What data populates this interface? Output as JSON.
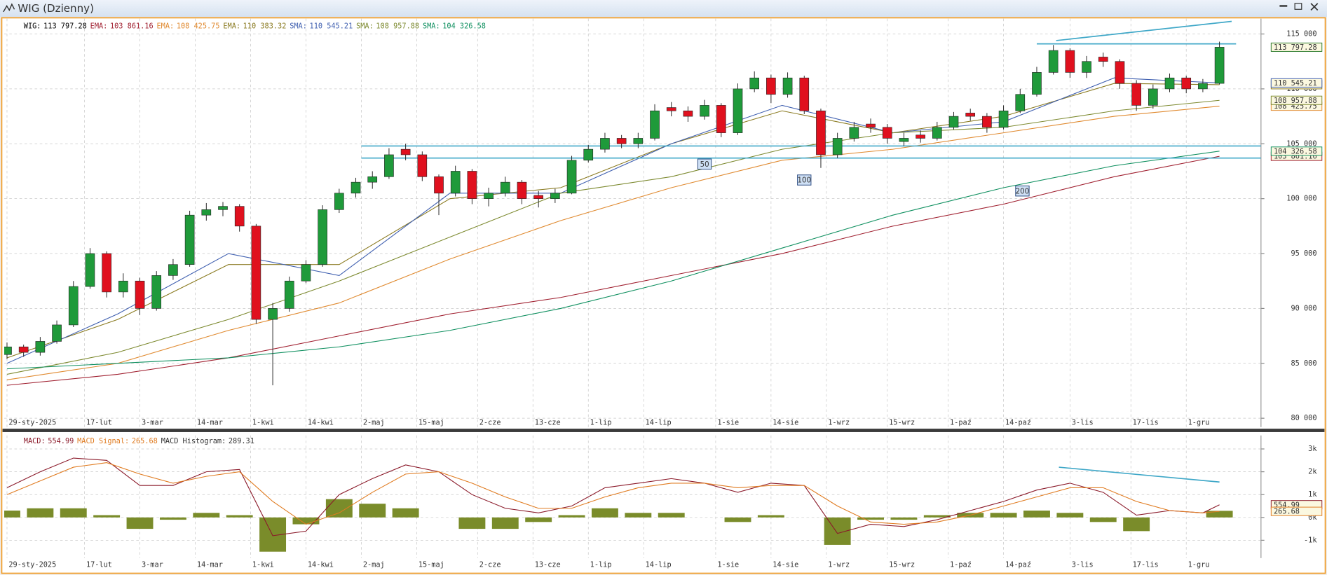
{
  "window": {
    "title": "WIG (Dzienny)"
  },
  "chart_data": [
    {
      "type": "candlestick",
      "name": "WIG:",
      "last_label": "113 797.28",
      "color": "#000000",
      "up_color": "#1f9a3a",
      "down_color": "#e0101e",
      "x": [
        0,
        3,
        6,
        9,
        12,
        15,
        18,
        21,
        24,
        27,
        30,
        33,
        36,
        39,
        42,
        45,
        48,
        51,
        54,
        57,
        60,
        63,
        66,
        69,
        72,
        75,
        78,
        81,
        84,
        87,
        90,
        93,
        96,
        99,
        102,
        105,
        108,
        111,
        114,
        117,
        120,
        123,
        126,
        129,
        132,
        135,
        138,
        141,
        144,
        147,
        150,
        153,
        156,
        159,
        162,
        165,
        168,
        171,
        174,
        177,
        180,
        183,
        186,
        189,
        192,
        195,
        198,
        201,
        204,
        207,
        210,
        213,
        216,
        219
      ],
      "open": [
        85800,
        86500,
        86000,
        87000,
        88500,
        92000,
        95000,
        91500,
        92500,
        90000,
        93000,
        94000,
        98500,
        99000,
        99300,
        97500,
        89000,
        90000,
        92500,
        94000,
        99000,
        100500,
        101500,
        102000,
        104500,
        104000,
        102000,
        100500,
        102500,
        100000,
        100500,
        101500,
        100300,
        100000,
        100500,
        103500,
        104500,
        105500,
        105000,
        105500,
        108300,
        108000,
        107500,
        108500,
        106000,
        110000,
        111000,
        109500,
        111000,
        108000,
        104000,
        105500,
        106800,
        106500,
        105200,
        105800,
        105500,
        106500,
        107800,
        107500,
        106500,
        108000,
        109500,
        111500,
        113500,
        111500,
        112900,
        112500,
        110500,
        108500,
        110000,
        111000,
        110000,
        110500
      ],
      "high": [
        86900,
        86700,
        87400,
        88900,
        92500,
        95500,
        95200,
        93200,
        92800,
        93400,
        94500,
        98900,
        99600,
        99700,
        99500,
        97700,
        90500,
        92900,
        94400,
        99400,
        100900,
        101900,
        102500,
        104600,
        105000,
        104300,
        102200,
        103000,
        102700,
        101000,
        102000,
        101700,
        100700,
        100900,
        103900,
        104900,
        106000,
        105800,
        106000,
        108600,
        108800,
        108400,
        109000,
        108700,
        110500,
        111600,
        111300,
        111500,
        111200,
        108200,
        106000,
        107000,
        107300,
        106800,
        106000,
        106200,
        107000,
        107900,
        108200,
        107800,
        108500,
        110000,
        112000,
        114000,
        113700,
        113000,
        113300,
        112700,
        110800,
        110400,
        111400,
        111200,
        110900,
        114300
      ],
      "low": [
        85400,
        85600,
        85700,
        86800,
        88300,
        91800,
        91000,
        91000,
        89400,
        89800,
        92600,
        93800,
        98000,
        98400,
        97000,
        88600,
        83000,
        89700,
        92300,
        93800,
        98700,
        100100,
        100900,
        101800,
        103500,
        101600,
        98500,
        100200,
        99500,
        99300,
        100200,
        99500,
        99200,
        99600,
        100400,
        103300,
        104200,
        104600,
        104600,
        105300,
        107500,
        107000,
        107200,
        105600,
        105800,
        109700,
        108700,
        109200,
        107700,
        102800,
        103700,
        105200,
        106000,
        105000,
        104800,
        105100,
        105300,
        106300,
        107100,
        106000,
        106300,
        107800,
        109300,
        111300,
        111000,
        111000,
        112000,
        110000,
        108000,
        108200,
        109700,
        109600,
        109700,
        110400
      ],
      "close": [
        86500,
        86000,
        87000,
        88500,
        92000,
        95000,
        91500,
        92500,
        90000,
        93000,
        94000,
        98500,
        99000,
        99300,
        97500,
        89000,
        90000,
        92500,
        94000,
        99000,
        100500,
        101500,
        102000,
        104000,
        104000,
        102000,
        100500,
        102500,
        100000,
        100500,
        101500,
        100000,
        100000,
        100500,
        103500,
        104500,
        105500,
        105000,
        105500,
        108000,
        108000,
        107500,
        108500,
        106000,
        110000,
        111000,
        109500,
        111000,
        108000,
        104000,
        105500,
        106500,
        106500,
        105500,
        105500,
        105500,
        106500,
        107500,
        107500,
        106500,
        108000,
        109500,
        111500,
        113500,
        111500,
        112500,
        112500,
        110500,
        108500,
        110000,
        111000,
        110000,
        110500,
        113797.28
      ],
      "lines": [
        {
          "name": "EMA:",
          "color": "#a02030",
          "last_label": "103 861.16",
          "x": [
            0,
            20,
            40,
            60,
            80,
            100,
            120,
            140,
            160,
            180,
            200,
            219
          ],
          "values": [
            83000,
            84000,
            85500,
            87500,
            89500,
            91000,
            93000,
            95000,
            97500,
            99500,
            102000,
            103861.16
          ]
        },
        {
          "name": "EMA:",
          "color": "#e08a30",
          "last_label": "108 425.75",
          "x": [
            0,
            20,
            40,
            60,
            80,
            100,
            120,
            140,
            160,
            180,
            200,
            219
          ],
          "values": [
            83500,
            85000,
            88000,
            90500,
            94500,
            98000,
            101000,
            103500,
            104500,
            106000,
            107500,
            108425.75
          ]
        },
        {
          "name": "EMA:",
          "color": "#8a7a20",
          "last_label": "110 383.32",
          "x": [
            0,
            20,
            40,
            60,
            80,
            100,
            120,
            140,
            160,
            180,
            200,
            219
          ],
          "values": [
            85500,
            89000,
            94000,
            94000,
            100000,
            101000,
            105000,
            108000,
            106000,
            107500,
            110500,
            110383.32
          ]
        },
        {
          "name": "SMA:",
          "color": "#4060b0",
          "last_label": "110 545.21",
          "x": [
            0,
            20,
            40,
            60,
            80,
            100,
            120,
            140,
            160,
            180,
            200,
            219
          ],
          "values": [
            85000,
            89500,
            95000,
            93000,
            100500,
            100500,
            105000,
            108500,
            106000,
            107000,
            111000,
            110545.21
          ]
        },
        {
          "name": "SMA:",
          "color": "#7d8a30",
          "last_label": "108 957.88",
          "x": [
            0,
            20,
            40,
            60,
            80,
            100,
            120,
            140,
            160,
            180,
            200,
            219
          ],
          "values": [
            84000,
            86000,
            89000,
            92500,
            96500,
            100500,
            102000,
            104500,
            106000,
            106500,
            108000,
            108957.88
          ]
        },
        {
          "name": "SMA:",
          "color": "#109060",
          "last_label": "104 326.58",
          "x": [
            0,
            20,
            40,
            60,
            80,
            100,
            120,
            140,
            160,
            180,
            200,
            219
          ],
          "values": [
            84500,
            85000,
            85500,
            86500,
            88000,
            90000,
            92500,
            95500,
            98500,
            101000,
            103000,
            104326.58
          ]
        }
      ],
      "hlines": [
        {
          "color": "#40a8c8",
          "x": [
            64,
            226.5
          ],
          "y": [
            104800,
            104800
          ]
        },
        {
          "color": "#40a8c8",
          "x": [
            64,
            226.5
          ],
          "y": [
            103700,
            103700
          ]
        },
        {
          "color": "#40a8c8",
          "x": [
            186,
            222
          ],
          "y": [
            114100,
            114100
          ]
        },
        {
          "color": "#40a8c8",
          "x": [
            189.5,
            221.2
          ],
          "y": [
            114400,
            116150
          ]
        }
      ],
      "line_tags": [
        {
          "text": "50",
          "x": 126,
          "y": 103150
        },
        {
          "text": "100",
          "x": 144,
          "y": 101700
        },
        {
          "text": "200",
          "x": 183.4,
          "y": 100700
        }
      ],
      "xlim": [
        -0.5,
        226.5
      ],
      "ylim": [
        79200,
        116400
      ],
      "xticks": [
        {
          "value": 0,
          "label": "29-sty-2025"
        },
        {
          "value": 14,
          "label": "17-lut"
        },
        {
          "value": 24,
          "label": "3-mar"
        },
        {
          "value": 34,
          "label": "14-mar"
        },
        {
          "value": 44,
          "label": "1-kwi"
        },
        {
          "value": 54,
          "label": "14-kwi"
        },
        {
          "value": 64,
          "label": "2-maj"
        },
        {
          "value": 74,
          "label": "15-maj"
        },
        {
          "value": 85,
          "label": "2-cze"
        },
        {
          "value": 95,
          "label": "13-cze"
        },
        {
          "value": 105,
          "label": "1-lip"
        },
        {
          "value": 115,
          "label": "14-lip"
        },
        {
          "value": 128,
          "label": "1-sie"
        },
        {
          "value": 138,
          "label": "14-sie"
        },
        {
          "value": 148,
          "label": "1-wrz"
        },
        {
          "value": 159,
          "label": "15-wrz"
        },
        {
          "value": 170,
          "label": "1-paź"
        },
        {
          "value": 180,
          "label": "14-paź"
        },
        {
          "value": 192,
          "label": "3-lis"
        },
        {
          "value": 203,
          "label": "17-lis"
        },
        {
          "value": 213,
          "label": "1-gru"
        }
      ],
      "yticks": [
        {
          "value": 80000,
          "label": "80 000"
        },
        {
          "value": 85000,
          "label": "85 000"
        },
        {
          "value": 90000,
          "label": "90 000"
        },
        {
          "value": 95000,
          "label": "95 000"
        },
        {
          "value": 100000,
          "label": "100 000"
        },
        {
          "value": 105000,
          "label": "105 000"
        },
        {
          "value": 110000,
          "label": "110 000"
        },
        {
          "value": 115000,
          "label": "115 000"
        }
      ],
      "grid": true
    },
    {
      "type": "macd",
      "x": [
        0,
        6,
        12,
        18,
        24,
        30,
        36,
        42,
        48,
        54,
        60,
        66,
        72,
        78,
        84,
        90,
        96,
        102,
        108,
        114,
        120,
        126,
        132,
        138,
        144,
        150,
        156,
        162,
        168,
        174,
        180,
        186,
        192,
        198,
        204,
        210,
        216,
        219
      ],
      "series": [
        {
          "name": "MACD:",
          "color": "#8b1a2a",
          "kind": "line",
          "values": [
            1300,
            2000,
            2600,
            2500,
            1400,
            1400,
            2000,
            2100,
            -800,
            -600,
            1000,
            1700,
            2300,
            2000,
            1000,
            400,
            200,
            500,
            1300,
            1500,
            1700,
            1500,
            1100,
            1500,
            1400,
            -700,
            -300,
            -400,
            -100,
            300,
            700,
            1200,
            1500,
            1100,
            100,
            300,
            200,
            554.99
          ]
        },
        {
          "name": "MACD Signal:",
          "color": "#e07b20",
          "kind": "line",
          "values": [
            1000,
            1600,
            2200,
            2400,
            1900,
            1500,
            1800,
            2000,
            700,
            -300,
            200,
            1100,
            1900,
            2000,
            1500,
            900,
            400,
            400,
            900,
            1300,
            1500,
            1500,
            1300,
            1400,
            1400,
            500,
            -200,
            -300,
            -200,
            100,
            500,
            900,
            1300,
            1300,
            700,
            300,
            200,
            265.68
          ]
        },
        {
          "name": "MACD Histogram:",
          "color": "#7a8c2a",
          "kind": "histogram",
          "values": [
            300,
            400,
            400,
            100,
            -500,
            -100,
            200,
            100,
            -1500,
            -300,
            800,
            600,
            400,
            0,
            -500,
            -500,
            -200,
            100,
            400,
            200,
            200,
            0,
            -200,
            100,
            0,
            -1200,
            -100,
            -100,
            100,
            200,
            200,
            300,
            200,
            -200,
            -600,
            0,
            0,
            289.31
          ]
        }
      ],
      "hlines": [
        {
          "color": "#40a8c8",
          "x": [
            190,
            219
          ],
          "y": [
            2200,
            1550
          ]
        }
      ],
      "xlim": [
        -0.5,
        226.5
      ],
      "ylim": [
        -1780,
        3590
      ],
      "xticks": [
        {
          "value": 0,
          "label": "29-sty-2025"
        },
        {
          "value": 14,
          "label": "17-lut"
        },
        {
          "value": 24,
          "label": "3-mar"
        },
        {
          "value": 34,
          "label": "14-mar"
        },
        {
          "value": 44,
          "label": "1-kwi"
        },
        {
          "value": 54,
          "label": "14-kwi"
        },
        {
          "value": 64,
          "label": "2-maj"
        },
        {
          "value": 74,
          "label": "15-maj"
        },
        {
          "value": 85,
          "label": "2-cze"
        },
        {
          "value": 95,
          "label": "13-cze"
        },
        {
          "value": 105,
          "label": "1-lip"
        },
        {
          "value": 115,
          "label": "14-lip"
        },
        {
          "value": 128,
          "label": "1-sie"
        },
        {
          "value": 138,
          "label": "14-sie"
        },
        {
          "value": 148,
          "label": "1-wrz"
        },
        {
          "value": 159,
          "label": "15-wrz"
        },
        {
          "value": 170,
          "label": "1-paź"
        },
        {
          "value": 180,
          "label": "14-paź"
        },
        {
          "value": 192,
          "label": "3-lis"
        },
        {
          "value": 203,
          "label": "17-lis"
        },
        {
          "value": 213,
          "label": "1-gru"
        }
      ],
      "yticks": [
        {
          "value": -1000,
          "label": "-1k"
        },
        {
          "value": 0,
          "label": "0k"
        },
        {
          "value": 1000,
          "label": "1k"
        },
        {
          "value": 2000,
          "label": "2k"
        },
        {
          "value": 3000,
          "label": "3k"
        }
      ],
      "grid": true
    }
  ]
}
